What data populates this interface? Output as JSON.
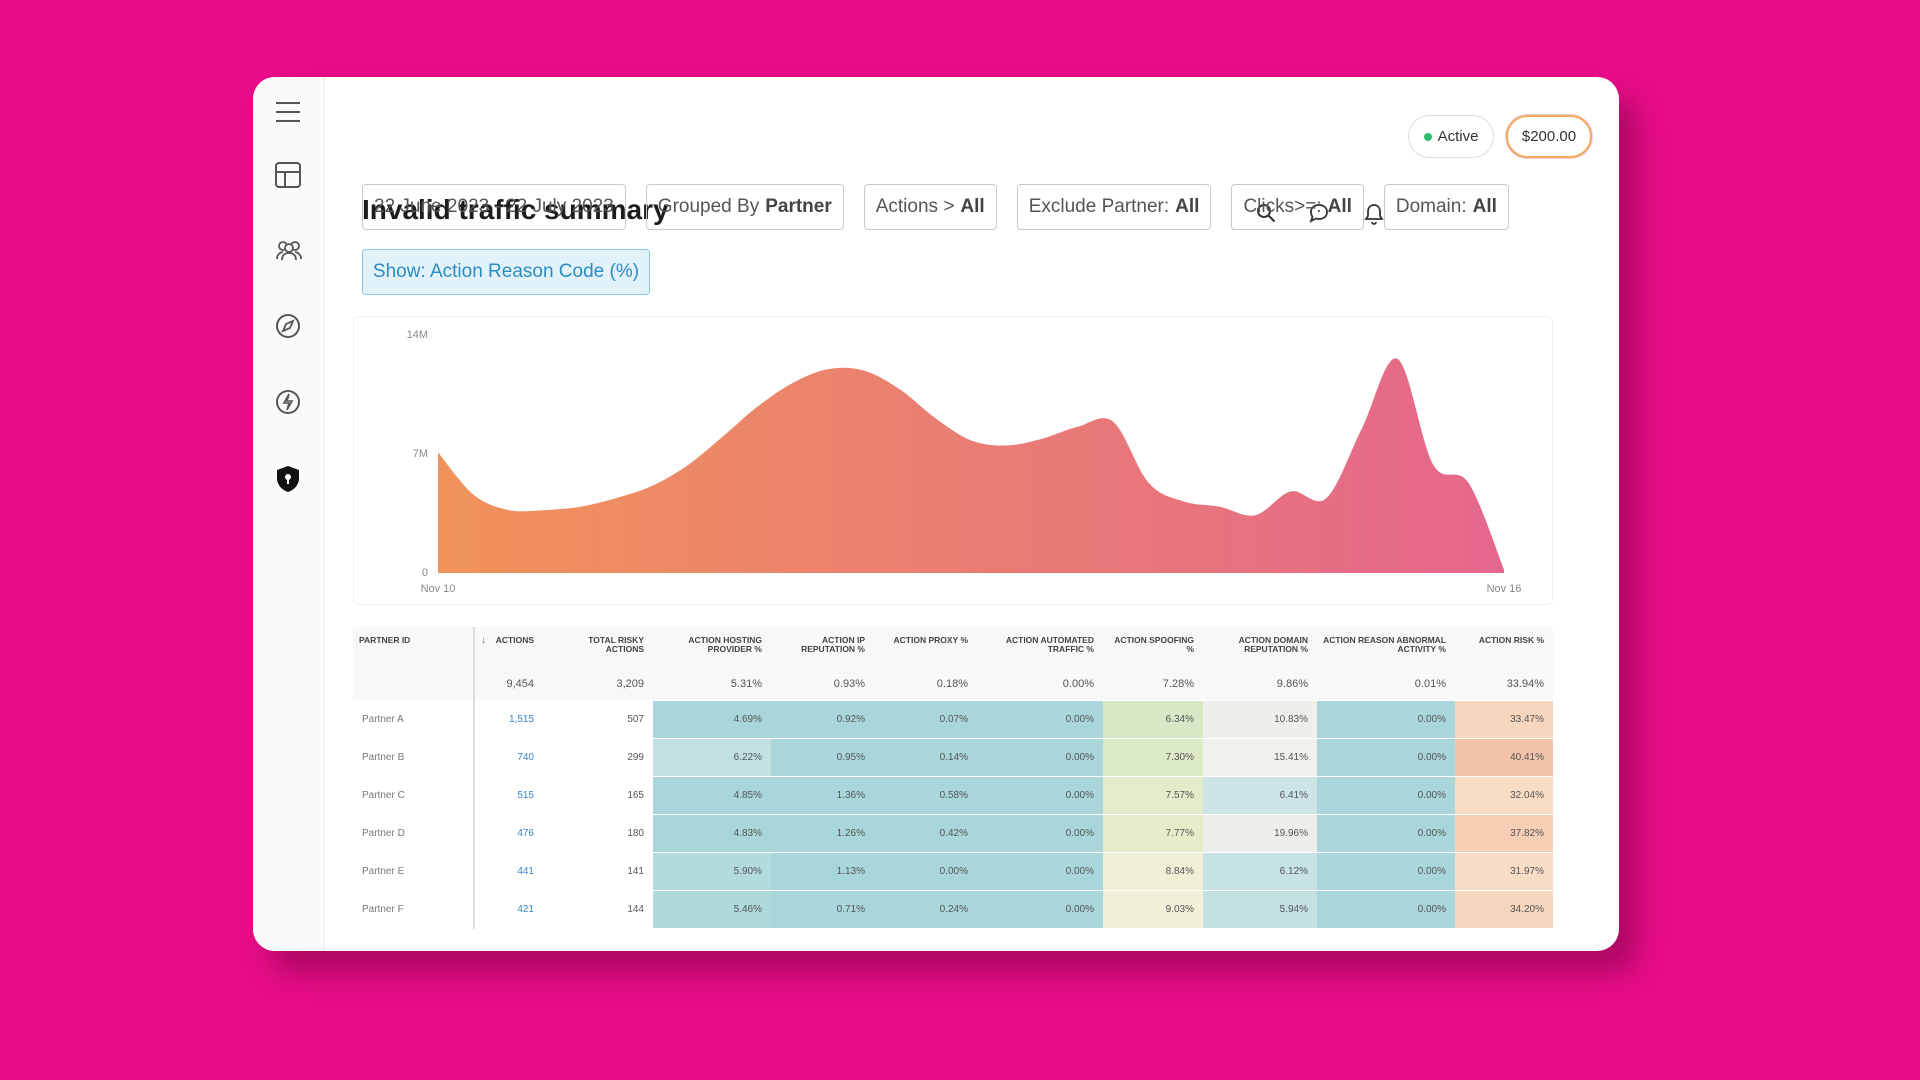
{
  "header": {
    "title": "Invalid traffic summary",
    "status": "Active",
    "balance": "$200.00"
  },
  "filters": [
    {
      "text": "22 June 2023 - 22 July 2023"
    },
    {
      "label": "Grouped By",
      "value": "Partner"
    },
    {
      "label": "Actions >",
      "value": "All"
    },
    {
      "label": "Exclude Partner:",
      "value": "All"
    },
    {
      "label": "Clicks>=:",
      "value": "All"
    },
    {
      "label": "Domain:",
      "value": "All"
    }
  ],
  "show": "Show: Action Reason Code (%)",
  "chart_data": {
    "type": "area",
    "categories": [
      "Nov 10",
      null,
      null,
      null,
      null,
      null,
      null,
      null,
      null,
      null,
      null,
      null,
      null,
      null,
      null,
      null,
      null,
      null,
      null,
      null,
      null,
      null,
      null,
      null,
      null,
      null,
      null,
      null,
      null,
      null,
      "Nov 16"
    ],
    "series": [
      {
        "color": "#ea7c6f",
        "values": [
          7100000,
          4600000,
          3700000,
          3700000,
          3900000,
          4400000,
          5100000,
          6300000,
          8000000,
          9800000,
          11200000,
          12000000,
          11900000,
          10800000,
          9100000,
          7800000,
          7500000,
          7900000,
          8600000,
          8900000,
          5300000,
          4200000,
          3900000,
          3400000,
          4800000,
          4400000,
          8500000,
          12600000,
          6400000,
          5300000,
          200000
        ]
      }
    ],
    "ylim": [
      0,
      14000000
    ],
    "yticks": [
      0,
      {
        "value": 7000000,
        "label": "7M"
      },
      {
        "value": 14000000,
        "label": "14M"
      }
    ],
    "grid": false
  },
  "table": {
    "columns": [
      "PARTNER ID",
      "ACTIONS",
      "TOTAL RISKY ACTIONS",
      "ACTION HOSTING PROVIDER %",
      "ACTION IP REPUTATION %",
      "ACTION PROXY %",
      "ACTION AUTOMATED TRAFFIC %",
      "ACTION SPOOFING %",
      "ACTION DOMAIN REPUTATION %",
      "ACTION REASON ABNORMAL ACTIVITY %",
      "ACTION RISK %"
    ],
    "totals": [
      "9,454",
      "3,209",
      "5.31%",
      "0.93%",
      "0.18%",
      "0.00%",
      "7.28%",
      "9.86%",
      "0.01%",
      "33.94%"
    ],
    "rows": [
      [
        "Partner A",
        "1,515",
        "507",
        "4.69%",
        "0.92%",
        "0.07%",
        "0.00%",
        "6.34%",
        "10.83%",
        "0.00%",
        "33.47%"
      ],
      [
        "Partner B",
        "740",
        "299",
        "6.22%",
        "0.95%",
        "0.14%",
        "0.00%",
        "7.30%",
        "15.41%",
        "0.00%",
        "40.41%"
      ],
      [
        "Partner C",
        "515",
        "165",
        "4.85%",
        "1.36%",
        "0.58%",
        "0.00%",
        "7.57%",
        "6.41%",
        "0.00%",
        "32.04%"
      ],
      [
        "Partner D",
        "476",
        "180",
        "4.83%",
        "1.26%",
        "0.42%",
        "0.00%",
        "7.77%",
        "19.96%",
        "0.00%",
        "37.82%"
      ],
      [
        "Partner E",
        "441",
        "141",
        "5.90%",
        "1.13%",
        "0.00%",
        "0.00%",
        "8.84%",
        "6.12%",
        "0.00%",
        "31.97%"
      ],
      [
        "Partner F",
        "421",
        "144",
        "5.46%",
        "0.71%",
        "0.24%",
        "0.00%",
        "9.03%",
        "5.94%",
        "0.00%",
        "34.20%"
      ]
    ]
  }
}
